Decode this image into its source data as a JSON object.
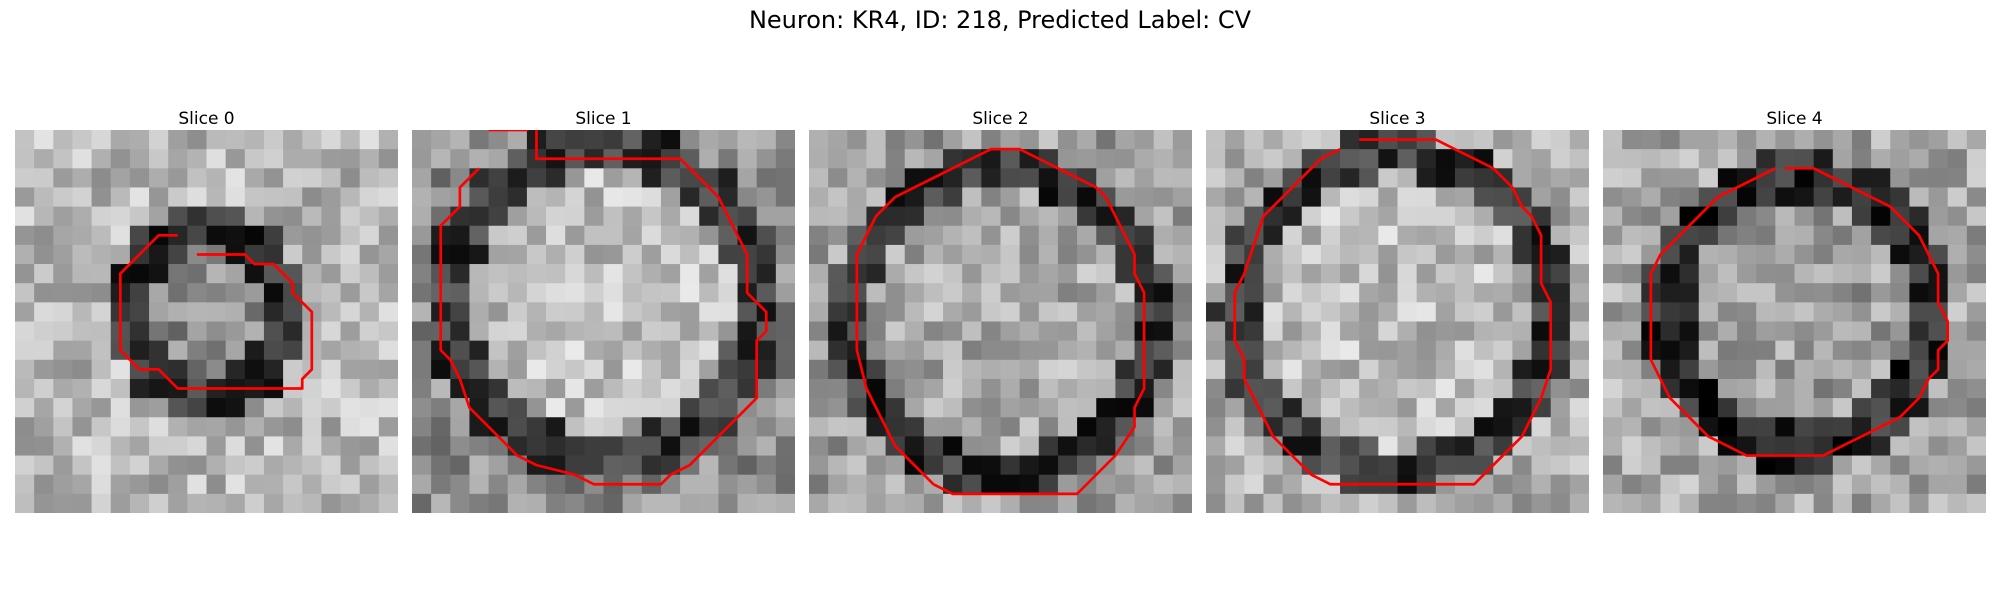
{
  "figure": {
    "title": "Neuron: KR4, ID: 218, Predicted Label: CV",
    "contour_color": "#ff0000",
    "colormap": "gray"
  },
  "panels": [
    {
      "title": "Slice 0",
      "contour": [
        [
          9.0,
          6.0
        ],
        [
          11.5,
          6.0
        ],
        [
          12.0,
          6.5
        ],
        [
          13.0,
          6.5
        ],
        [
          14.0,
          7.5
        ],
        [
          14.0,
          8.0
        ],
        [
          15.0,
          9.0
        ],
        [
          15.0,
          12.0
        ],
        [
          14.5,
          12.5
        ],
        [
          14.5,
          13.0
        ],
        [
          8.0,
          13.0
        ],
        [
          7.0,
          12.0
        ],
        [
          6.0,
          12.0
        ],
        [
          5.0,
          11.0
        ],
        [
          5.0,
          7.0
        ],
        [
          6.0,
          6.0
        ],
        [
          7.0,
          5.0
        ],
        [
          8.0,
          5.0
        ]
      ]
    },
    {
      "title": "Slice 1",
      "contour": [
        [
          3.5,
          -0.5
        ],
        [
          5.5,
          -0.5
        ],
        [
          6.0,
          -1.0
        ],
        [
          6.0,
          1.0
        ],
        [
          13.5,
          1.0
        ],
        [
          15.5,
          3.0
        ],
        [
          16.0,
          4.0
        ],
        [
          16.5,
          5.0
        ],
        [
          17.0,
          6.0
        ],
        [
          17.0,
          8.0
        ],
        [
          18.0,
          9.0
        ],
        [
          18.0,
          10.0
        ],
        [
          17.5,
          10.5
        ],
        [
          17.5,
          13.5
        ],
        [
          16.5,
          14.5
        ],
        [
          16.0,
          15.0
        ],
        [
          14.0,
          17.0
        ],
        [
          13.0,
          17.5
        ],
        [
          12.5,
          18.0
        ],
        [
          9.0,
          18.0
        ],
        [
          8.0,
          17.5
        ],
        [
          6.0,
          17.0
        ],
        [
          5.0,
          16.5
        ],
        [
          4.5,
          16.0
        ],
        [
          3.5,
          15.0
        ],
        [
          2.5,
          14.0
        ],
        [
          2.0,
          12.5
        ],
        [
          1.5,
          11.5
        ],
        [
          1.0,
          11.0
        ],
        [
          1.0,
          4.5
        ],
        [
          2.0,
          3.5
        ],
        [
          2.0,
          2.5
        ],
        [
          3.0,
          1.5
        ]
      ]
    },
    {
      "title": "Slice 2",
      "contour": [
        [
          6.0,
          18.0
        ],
        [
          5.0,
          17.0
        ],
        [
          4.0,
          16.0
        ],
        [
          3.5,
          15.0
        ],
        [
          3.0,
          14.0
        ],
        [
          2.5,
          13.0
        ],
        [
          2.0,
          11.0
        ],
        [
          2.0,
          6.0
        ],
        [
          2.5,
          5.0
        ],
        [
          3.0,
          4.0
        ],
        [
          4.0,
          3.0
        ],
        [
          5.0,
          2.5
        ],
        [
          6.0,
          2.0
        ],
        [
          7.0,
          1.5
        ],
        [
          8.0,
          1.0
        ],
        [
          9.0,
          0.5
        ],
        [
          10.5,
          0.5
        ],
        [
          11.5,
          1.0
        ],
        [
          12.5,
          1.5
        ],
        [
          13.5,
          2.0
        ],
        [
          14.5,
          2.5
        ],
        [
          15.0,
          3.0
        ],
        [
          15.5,
          4.0
        ],
        [
          16.0,
          5.0
        ],
        [
          16.5,
          6.0
        ],
        [
          16.5,
          7.0
        ],
        [
          17.0,
          8.0
        ],
        [
          17.0,
          13.0
        ],
        [
          16.5,
          14.0
        ],
        [
          16.5,
          15.0
        ],
        [
          15.5,
          16.5
        ],
        [
          14.5,
          17.5
        ],
        [
          14.0,
          18.0
        ],
        [
          13.5,
          18.5
        ],
        [
          11.5,
          18.5
        ],
        [
          8.5,
          18.5
        ],
        [
          7.0,
          18.5
        ],
        [
          6.0,
          18.0
        ]
      ]
    },
    {
      "title": "Slice 3",
      "contour": [
        [
          7.5,
          0.0
        ],
        [
          11.5,
          0.0
        ],
        [
          12.5,
          0.5
        ],
        [
          13.5,
          1.0
        ],
        [
          14.5,
          1.5
        ],
        [
          15.5,
          2.5
        ],
        [
          16.0,
          3.5
        ],
        [
          16.5,
          4.0
        ],
        [
          17.0,
          5.0
        ],
        [
          17.0,
          7.5
        ],
        [
          17.5,
          8.5
        ],
        [
          17.5,
          12.0
        ],
        [
          17.0,
          13.5
        ],
        [
          16.5,
          14.5
        ],
        [
          16.0,
          15.5
        ],
        [
          15.0,
          16.5
        ],
        [
          14.0,
          17.5
        ],
        [
          13.5,
          18.0
        ],
        [
          6.0,
          18.0
        ],
        [
          5.0,
          17.5
        ],
        [
          4.0,
          16.5
        ],
        [
          3.0,
          15.5
        ],
        [
          2.5,
          14.5
        ],
        [
          2.0,
          13.5
        ],
        [
          1.5,
          12.5
        ],
        [
          1.5,
          11.5
        ],
        [
          1.0,
          10.5
        ],
        [
          1.0,
          8.0
        ],
        [
          1.5,
          7.0
        ],
        [
          2.0,
          5.5
        ],
        [
          2.5,
          4.0
        ],
        [
          3.5,
          3.0
        ],
        [
          4.5,
          2.0
        ],
        [
          5.5,
          1.0
        ],
        [
          6.5,
          0.5
        ]
      ]
    },
    {
      "title": "Slice 4",
      "contour": [
        [
          9.0,
          1.5
        ],
        [
          10.5,
          1.5
        ],
        [
          11.5,
          2.0
        ],
        [
          12.5,
          2.5
        ],
        [
          13.5,
          3.0
        ],
        [
          14.5,
          3.5
        ],
        [
          15.0,
          4.0
        ],
        [
          16.0,
          5.0
        ],
        [
          16.5,
          6.0
        ],
        [
          17.0,
          7.0
        ],
        [
          17.0,
          8.5
        ],
        [
          17.5,
          9.5
        ],
        [
          17.5,
          10.5
        ],
        [
          17.0,
          11.0
        ],
        [
          17.0,
          12.0
        ],
        [
          16.5,
          12.5
        ],
        [
          16.0,
          13.5
        ],
        [
          15.5,
          14.0
        ],
        [
          15.0,
          14.5
        ],
        [
          14.0,
          15.0
        ],
        [
          13.0,
          15.5
        ],
        [
          12.0,
          16.0
        ],
        [
          11.0,
          16.5
        ],
        [
          10.0,
          16.5
        ],
        [
          9.0,
          16.5
        ],
        [
          7.0,
          16.5
        ],
        [
          6.0,
          16.0
        ],
        [
          5.0,
          15.5
        ],
        [
          4.0,
          14.5
        ],
        [
          3.0,
          13.5
        ],
        [
          2.5,
          12.5
        ],
        [
          2.0,
          11.5
        ],
        [
          2.0,
          7.0
        ],
        [
          2.5,
          6.0
        ],
        [
          3.0,
          5.5
        ],
        [
          3.5,
          5.0
        ],
        [
          4.5,
          4.0
        ],
        [
          5.0,
          3.5
        ],
        [
          5.5,
          3.0
        ],
        [
          6.5,
          2.5
        ],
        [
          7.5,
          2.0
        ],
        [
          8.5,
          1.5
        ]
      ]
    }
  ]
}
